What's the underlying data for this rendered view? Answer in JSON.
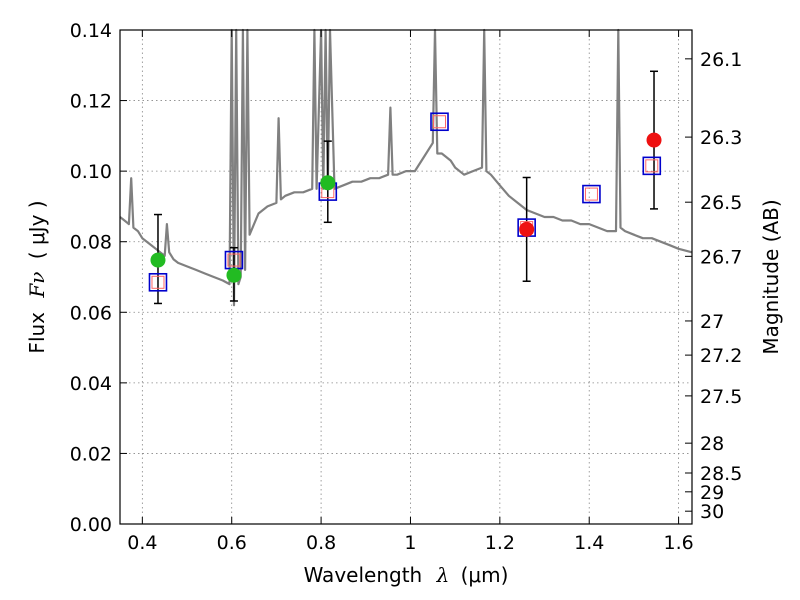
{
  "chart_data": {
    "type": "scatter",
    "xlabel": "Wavelength",
    "xlabel_math": "λ",
    "xlabel_unit": "(μm)",
    "ylabel": "Flux",
    "ylabel_math": "Fν",
    "ylabel_unit": "( μJy )",
    "y2label": "Magnitude (AB)",
    "xlim": [
      0.35,
      1.63
    ],
    "ylim": [
      0.0,
      0.14
    ],
    "grid": true,
    "x_ticks": [
      0.4,
      0.6,
      0.8,
      1.0,
      1.2,
      1.4,
      1.6
    ],
    "x_tick_labels": [
      "0.4",
      "0.6",
      "0.8",
      "1",
      "1.2",
      "1.4",
      "1.6"
    ],
    "y_ticks": [
      0.0,
      0.02,
      0.04,
      0.06,
      0.08,
      0.1,
      0.12,
      0.14
    ],
    "y_tick_labels": [
      "0.00",
      "0.02",
      "0.04",
      "0.06",
      "0.08",
      "0.10",
      "0.12",
      "0.14"
    ],
    "mag_ticks": [
      26.1,
      26.3,
      26.5,
      26.7,
      27,
      27.2,
      27.5,
      28,
      28.5,
      29,
      30
    ],
    "mag_tick_labels": [
      "26.1",
      "26.3",
      "26.5",
      "26.7",
      "27",
      "27.2",
      "27.5",
      "28",
      "28.5",
      "29",
      "30"
    ],
    "colors": {
      "spectrum": "#808080",
      "model_edge": "#0000cc",
      "model_inner_edge": "#ff6666",
      "observed_optical": "#22bb22",
      "observed_nir": "#ee1111",
      "errorbar": "#000000",
      "grid": "#888888"
    },
    "spectrum": {
      "name": "model spectrum",
      "x": [
        0.35,
        0.36,
        0.37,
        0.375,
        0.38,
        0.39,
        0.4,
        0.41,
        0.42,
        0.43,
        0.44,
        0.45,
        0.455,
        0.46,
        0.47,
        0.48,
        0.5,
        0.52,
        0.54,
        0.56,
        0.58,
        0.595,
        0.6,
        0.605,
        0.61,
        0.615,
        0.62,
        0.625,
        0.63,
        0.635,
        0.64,
        0.66,
        0.68,
        0.7,
        0.705,
        0.71,
        0.72,
        0.74,
        0.76,
        0.78,
        0.785,
        0.79,
        0.8,
        0.805,
        0.81,
        0.815,
        0.82,
        0.83,
        0.85,
        0.87,
        0.89,
        0.91,
        0.93,
        0.95,
        0.955,
        0.96,
        0.97,
        0.99,
        1.01,
        1.03,
        1.05,
        1.055,
        1.06,
        1.07,
        1.08,
        1.09,
        1.1,
        1.12,
        1.14,
        1.16,
        1.165,
        1.17,
        1.18,
        1.2,
        1.22,
        1.24,
        1.26,
        1.28,
        1.3,
        1.32,
        1.34,
        1.36,
        1.38,
        1.4,
        1.42,
        1.44,
        1.46,
        1.465,
        1.47,
        1.48,
        1.5,
        1.52,
        1.54,
        1.56,
        1.58,
        1.6,
        1.63
      ],
      "y": [
        0.087,
        0.086,
        0.085,
        0.098,
        0.084,
        0.083,
        0.081,
        0.08,
        0.079,
        0.078,
        0.077,
        0.076,
        0.085,
        0.077,
        0.075,
        0.074,
        0.073,
        0.072,
        0.071,
        0.07,
        0.069,
        0.068,
        0.14,
        0.062,
        0.14,
        0.068,
        0.07,
        0.14,
        0.072,
        0.14,
        0.082,
        0.088,
        0.09,
        0.091,
        0.115,
        0.092,
        0.093,
        0.094,
        0.094,
        0.095,
        0.14,
        0.095,
        0.14,
        0.095,
        0.14,
        0.095,
        0.14,
        0.095,
        0.096,
        0.097,
        0.097,
        0.098,
        0.098,
        0.099,
        0.118,
        0.099,
        0.099,
        0.1,
        0.1,
        0.104,
        0.108,
        0.14,
        0.105,
        0.105,
        0.104,
        0.103,
        0.101,
        0.099,
        0.1,
        0.101,
        0.14,
        0.1,
        0.099,
        0.096,
        0.093,
        0.091,
        0.089,
        0.088,
        0.087,
        0.087,
        0.086,
        0.086,
        0.085,
        0.085,
        0.084,
        0.083,
        0.083,
        0.14,
        0.084,
        0.083,
        0.082,
        0.081,
        0.081,
        0.08,
        0.079,
        0.078,
        0.077
      ]
    },
    "model_points": {
      "name": "model photometry",
      "x": [
        0.435,
        0.605,
        0.815,
        1.065,
        1.26,
        1.405,
        1.54
      ],
      "y": [
        0.0685,
        0.0748,
        0.0942,
        0.114,
        0.084,
        0.0935,
        0.1015
      ]
    },
    "observed_points": [
      {
        "x": 0.435,
        "y": 0.0748,
        "err_low": 0.0625,
        "err_high": 0.0877,
        "band": "optical"
      },
      {
        "x": 0.605,
        "y": 0.0705,
        "err_low": 0.0632,
        "err_high": 0.0783,
        "band": "optical"
      },
      {
        "x": 0.815,
        "y": 0.0967,
        "err_low": 0.0855,
        "err_high": 0.1085,
        "band": "optical"
      },
      {
        "x": 1.26,
        "y": 0.0835,
        "err_low": 0.0688,
        "err_high": 0.0982,
        "band": "nir"
      },
      {
        "x": 1.545,
        "y": 0.1088,
        "err_low": 0.0893,
        "err_high": 0.1283,
        "band": "nir"
      }
    ]
  }
}
